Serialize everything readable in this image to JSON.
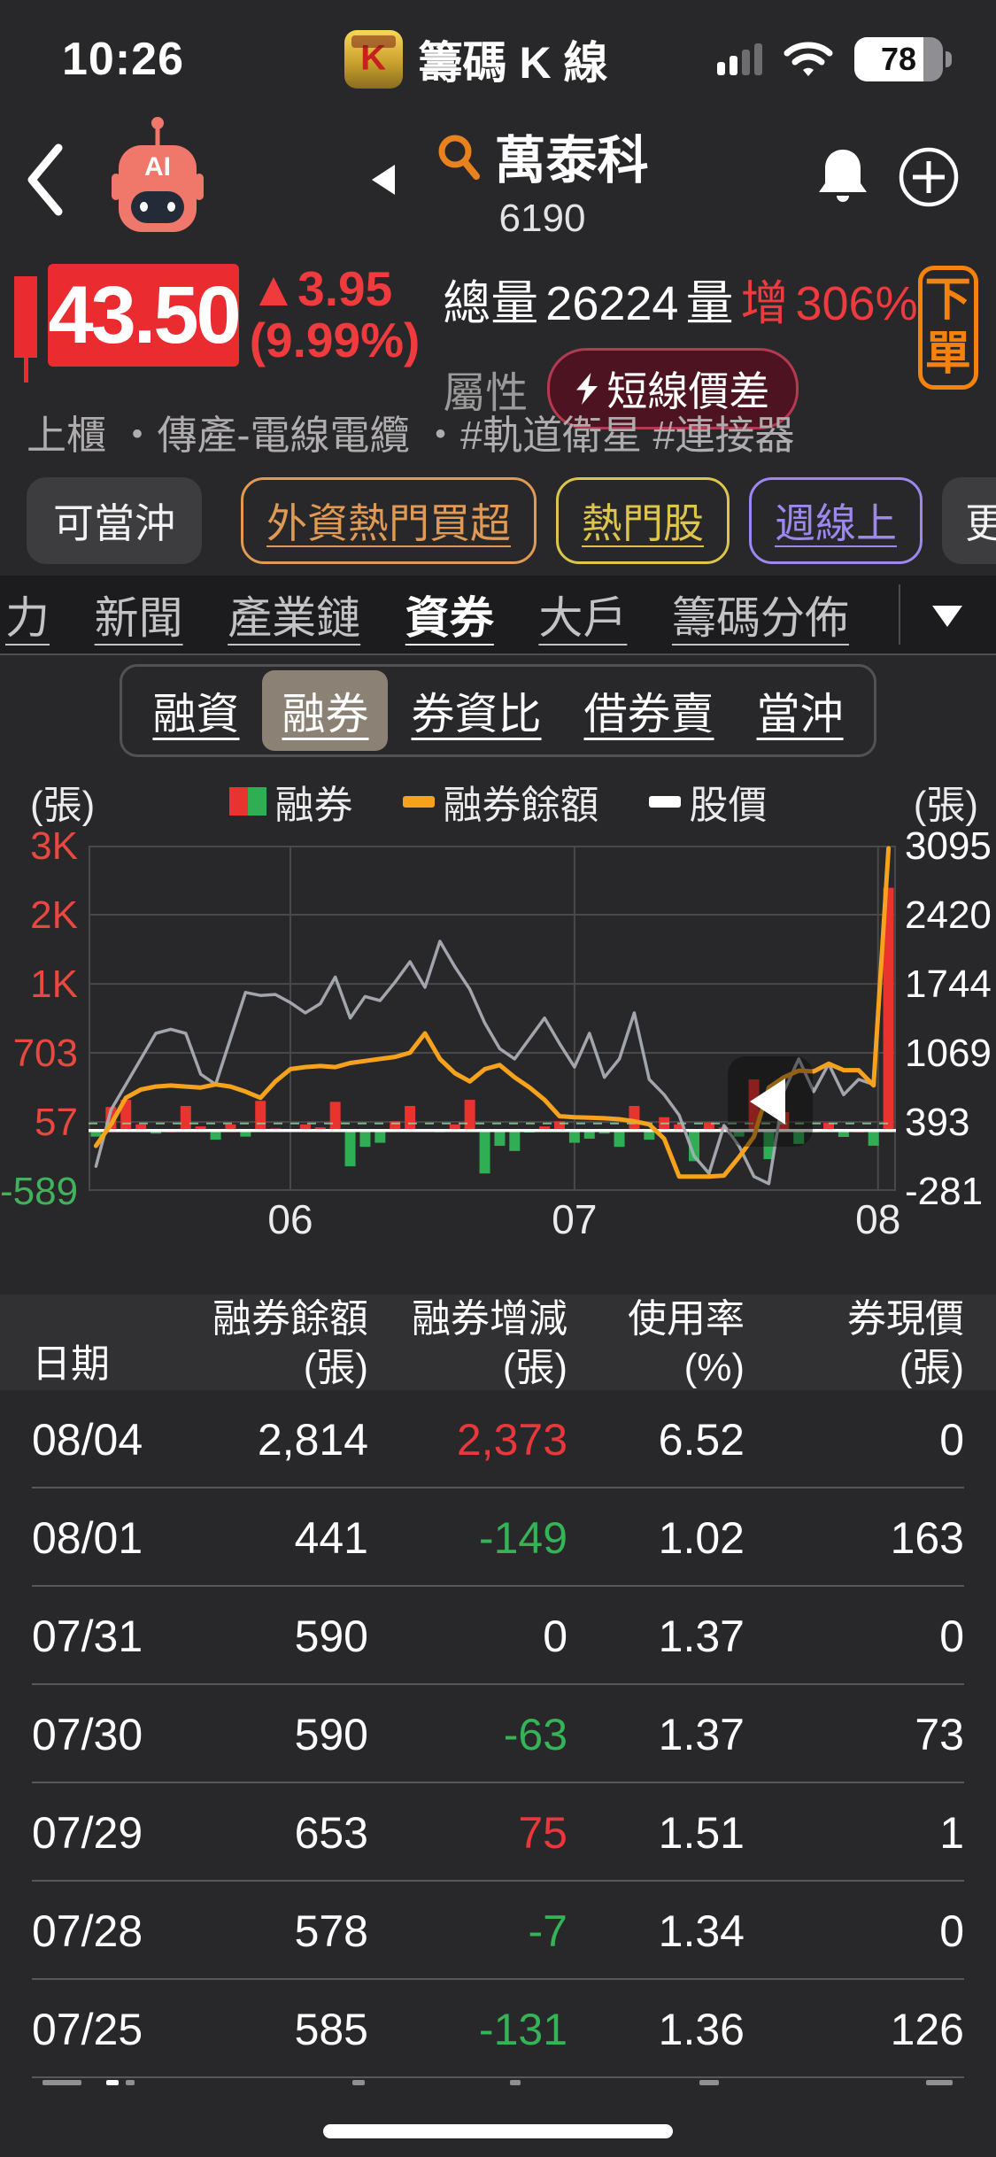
{
  "status_bar": {
    "time": "10:26",
    "app_name": "籌碼 K 線",
    "battery_pct": "78"
  },
  "header": {
    "title": "萬泰科",
    "code": "6190"
  },
  "quote": {
    "price": "43.50",
    "change": "▲3.95",
    "change_pct": "(9.99%)",
    "total_label": "總量",
    "total_volume": "26224",
    "vol_label_white": "量",
    "vol_label_red": "增",
    "vol_inc_pct": "306%",
    "attr_label": "屬性",
    "attr_tag": "短線價差",
    "order_char1": "下",
    "order_char2": "單"
  },
  "industry_line": "上櫃 ・傳產-電線電纜 ・#軌道衛星 #連接器",
  "chips": {
    "day_trade": "可當沖",
    "tags": [
      {
        "label": "外資熱門買超",
        "color": "#e09a54"
      },
      {
        "label": "熱門股",
        "color": "#ddc44b"
      },
      {
        "label": "週線上",
        "color": "#9c88ee"
      }
    ],
    "more": "更多"
  },
  "nav_tabs": {
    "items": [
      {
        "label": "力",
        "active": false
      },
      {
        "label": "新聞",
        "active": false
      },
      {
        "label": "產業鏈",
        "active": false
      },
      {
        "label": "資券",
        "active": true
      },
      {
        "label": "大戶",
        "active": false
      },
      {
        "label": "籌碼分佈",
        "active": false
      }
    ]
  },
  "sub_tabs": {
    "items": [
      {
        "label": "融資",
        "active": false
      },
      {
        "label": "融券",
        "active": true
      },
      {
        "label": "券資比",
        "active": false
      },
      {
        "label": "借券賣",
        "active": false
      },
      {
        "label": "當沖",
        "active": false
      }
    ]
  },
  "chart": {
    "unit_left": "(張)",
    "unit_right": "(張)",
    "legend": [
      {
        "label": "融券",
        "swatch": "bar-pair"
      },
      {
        "label": "融券餘額",
        "swatch": "#f6a21c"
      },
      {
        "label": "股價",
        "swatch": "#ffffff"
      }
    ],
    "chart_data": {
      "type": "composite",
      "x_tick_labels": [
        "06",
        "07",
        "08"
      ],
      "x_tick_positions": [
        13,
        32,
        52.3
      ],
      "y_left_ticks": [
        "3K",
        "2K",
        "1K",
        "703",
        "57",
        "-589"
      ],
      "y_left_tick_colors": [
        "#e8483f",
        "#e8483f",
        "#e8483f",
        "#e8483f",
        "#e8483f",
        "#43b05c"
      ],
      "y_right_ticks": [
        3095,
        2420,
        1744,
        1069,
        393,
        -281
      ],
      "y_right_range": [
        -281,
        3095
      ],
      "baseline_value": 310,
      "series": [
        {
          "name": "融券",
          "type": "bar",
          "color_up": "#e8332f",
          "color_down": "#2fae53",
          "values": [
            -60,
            230,
            300,
            60,
            -30,
            0,
            240,
            40,
            -90,
            60,
            -60,
            290,
            20,
            10,
            60,
            30,
            280,
            -350,
            -160,
            -120,
            90,
            240,
            10,
            -10,
            60,
            300,
            -420,
            -150,
            -200,
            -20,
            40,
            90,
            -120,
            -80,
            -30,
            -160,
            240,
            -90,
            130,
            60,
            -300,
            80,
            30,
            -60,
            500,
            -280,
            180,
            -131,
            -7,
            75,
            -63,
            0,
            -149,
            2373
          ]
        },
        {
          "name": "融券餘額",
          "type": "line",
          "color": "#f6a21c",
          "values": [
            -150,
            60,
            320,
            400,
            430,
            440,
            430,
            420,
            450,
            430,
            380,
            320,
            480,
            600,
            620,
            630,
            620,
            660,
            680,
            700,
            720,
            760,
            950,
            700,
            560,
            480,
            600,
            640,
            520,
            420,
            300,
            140,
            130,
            125,
            120,
            110,
            90,
            60,
            -80,
            -450,
            -450,
            -450,
            -440,
            -260,
            -60,
            420,
            520,
            585,
            578,
            653,
            590,
            590,
            441,
            2814
          ]
        },
        {
          "name": "股價",
          "type": "line",
          "color": "#a9adb3",
          "values": [
            -350,
            200,
            450,
            700,
            950,
            990,
            950,
            550,
            450,
            900,
            1350,
            1320,
            1330,
            1250,
            1150,
            1240,
            1500,
            1100,
            1310,
            1270,
            1450,
            1650,
            1400,
            1850,
            1600,
            1380,
            1050,
            800,
            700,
            900,
            1100,
            850,
            620,
            950,
            520,
            700,
            1150,
            500,
            350,
            150,
            -250,
            -420,
            50,
            -150,
            -450,
            -520,
            380,
            700,
            380,
            650,
            350,
            500,
            450,
            2900
          ]
        }
      ]
    }
  },
  "table": {
    "headers": [
      {
        "label": "日期",
        "unit": ""
      },
      {
        "label": "融券餘額",
        "unit": "(張)"
      },
      {
        "label": "融券增減",
        "unit": "(張)"
      },
      {
        "label": "使用率",
        "unit": "(%)"
      },
      {
        "label": "券現價",
        "unit": "(張)"
      }
    ],
    "rows": [
      {
        "date": "08/04",
        "balance": "2,814",
        "change": "2,373",
        "usage": "6.52",
        "short_price": "0"
      },
      {
        "date": "08/01",
        "balance": "441",
        "change": "-149",
        "usage": "1.02",
        "short_price": "163"
      },
      {
        "date": "07/31",
        "balance": "590",
        "change": "0",
        "usage": "1.37",
        "short_price": "0"
      },
      {
        "date": "07/30",
        "balance": "590",
        "change": "-63",
        "usage": "1.37",
        "short_price": "73"
      },
      {
        "date": "07/29",
        "balance": "653",
        "change": "75",
        "usage": "1.51",
        "short_price": "1"
      },
      {
        "date": "07/28",
        "balance": "578",
        "change": "-7",
        "usage": "1.34",
        "short_price": "0"
      },
      {
        "date": "07/25",
        "balance": "585",
        "change": "-131",
        "usage": "1.36",
        "short_price": "126"
      }
    ],
    "colors": {
      "up": "#e8383b",
      "down": "#35b357",
      "flat": "#ffffff"
    }
  },
  "icons": {
    "back": "chevron-left",
    "ai_assistant": "robot",
    "prev_stock": "triangle-left",
    "search": "magnifier",
    "notification": "bell",
    "add": "plus-circle",
    "attr_flash": "lightning-bolt",
    "nav_more": "triangle-down",
    "chart_collapse": "triangle-left",
    "signal": "cell-bars",
    "wifi": "wifi",
    "battery": "battery-78"
  }
}
